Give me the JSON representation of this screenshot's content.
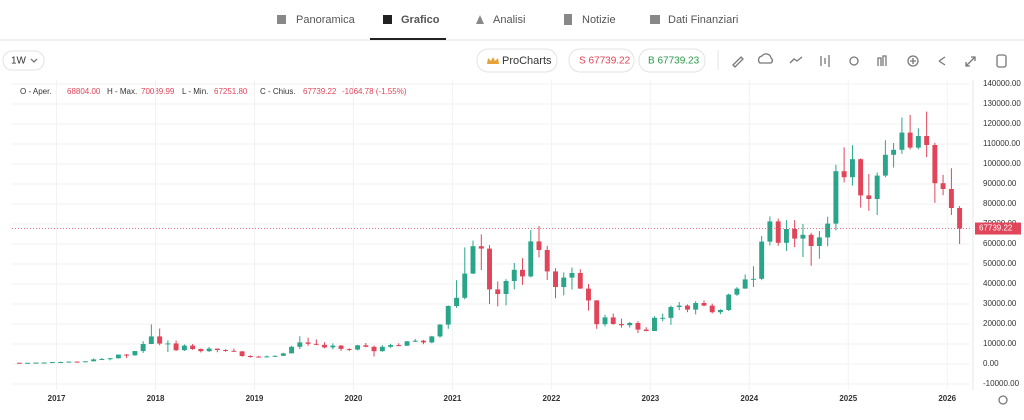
{
  "nav": {
    "tabs": [
      "Panoramica",
      "Grafico",
      "Analisi",
      "Notizie",
      "Dati Finanziari"
    ],
    "active_tab": 1
  },
  "toolbar": {
    "interval": "1W",
    "procharts": "ProCharts",
    "sell": "S 67739.22",
    "buy": "B 67739.23"
  },
  "ohlc_info": {
    "open_label": "O - Aper.",
    "open": "68804.00",
    "high_label": "H - Max.",
    "high": "70089.99",
    "low_label": "L - Min.",
    "low": "67251.80",
    "close_label": "C - Chius.",
    "close": "67739.22",
    "change": "-1064.78 (-1.55%)"
  },
  "chart_data": {
    "type": "candlestick",
    "up_color": "#2aa58a",
    "down_color": "#e0455a",
    "grid": true,
    "xlim": [
      2016.55,
      2026.23
    ],
    "xticks": [
      2017,
      2018,
      2019,
      2020,
      2021,
      2022,
      2023,
      2024,
      2025,
      2026
    ],
    "ylim": [
      -13000,
      142000
    ],
    "yticks": [
      {
        "value": -10000,
        "label": "-10000.00"
      },
      {
        "value": 0,
        "label": "0.00"
      },
      {
        "value": 10000,
        "label": "10000.00"
      },
      {
        "value": 20000,
        "label": "20000.00"
      },
      {
        "value": 30000,
        "label": "30000.00"
      },
      {
        "value": 40000,
        "label": "40000.00"
      },
      {
        "value": 50000,
        "label": "50000.00"
      },
      {
        "value": 60000,
        "label": "60000.00"
      },
      {
        "value": 70000,
        "label": "70000.00"
      },
      {
        "value": 80000,
        "label": "80000.00"
      },
      {
        "value": 90000,
        "label": "90000.00"
      },
      {
        "value": 100000,
        "label": "100000.00"
      },
      {
        "value": 110000,
        "label": "110000.00"
      },
      {
        "value": 120000,
        "label": "120000.00"
      },
      {
        "value": 130000,
        "label": "130000.00"
      },
      {
        "value": 140000,
        "label": "140000.00"
      }
    ],
    "last_price": 67739.22,
    "x": [
      2016.625,
      2016.708,
      2016.792,
      2016.875,
      2016.958,
      2017.042,
      2017.125,
      2017.208,
      2017.292,
      2017.375,
      2017.458,
      2017.542,
      2017.625,
      2017.708,
      2017.792,
      2017.875,
      2017.958,
      2018.042,
      2018.125,
      2018.208,
      2018.292,
      2018.375,
      2018.458,
      2018.542,
      2018.625,
      2018.708,
      2018.792,
      2018.875,
      2018.958,
      2019.042,
      2019.125,
      2019.208,
      2019.292,
      2019.375,
      2019.458,
      2019.542,
      2019.625,
      2019.708,
      2019.792,
      2019.875,
      2019.958,
      2020.042,
      2020.125,
      2020.208,
      2020.292,
      2020.375,
      2020.458,
      2020.542,
      2020.625,
      2020.708,
      2020.792,
      2020.875,
      2020.958,
      2021.042,
      2021.125,
      2021.208,
      2021.292,
      2021.375,
      2021.458,
      2021.542,
      2021.625,
      2021.708,
      2021.792,
      2021.875,
      2021.958,
      2022.042,
      2022.125,
      2022.208,
      2022.292,
      2022.375,
      2022.458,
      2022.542,
      2022.625,
      2022.708,
      2022.792,
      2022.875,
      2022.958,
      2023.042,
      2023.125,
      2023.208,
      2023.292,
      2023.375,
      2023.458,
      2023.542,
      2023.625,
      2023.708,
      2023.792,
      2023.875,
      2023.958,
      2024.042,
      2024.125,
      2024.208,
      2024.292,
      2024.375,
      2024.458,
      2024.542,
      2024.625,
      2024.708,
      2024.792,
      2024.875,
      2024.958,
      2025.042,
      2025.125,
      2025.208,
      2025.292,
      2025.375,
      2025.458,
      2025.542,
      2025.625,
      2025.708,
      2025.792,
      2025.875,
      2025.958,
      2026.042,
      2026.125
    ],
    "ohlc": [
      [
        625,
        630,
        530,
        575
      ],
      [
        575,
        630,
        590,
        610
      ],
      [
        610,
        740,
        600,
        700
      ],
      [
        700,
        760,
        690,
        740
      ],
      [
        740,
        980,
        730,
        960
      ],
      [
        960,
        1150,
        760,
        970
      ],
      [
        970,
        1210,
        930,
        1190
      ],
      [
        1190,
        1290,
        890,
        1080
      ],
      [
        1080,
        1350,
        1060,
        1350
      ],
      [
        1350,
        2760,
        1350,
        2300
      ],
      [
        2300,
        2980,
        2300,
        2480
      ],
      [
        2480,
        2920,
        1840,
        2880
      ],
      [
        2880,
        4770,
        2690,
        4700
      ],
      [
        4700,
        5000,
        2980,
        4340
      ],
      [
        4340,
        6470,
        4110,
        6470
      ],
      [
        6470,
        11400,
        5520,
        10000
      ],
      [
        10000,
        19800,
        10000,
        13800
      ],
      [
        13800,
        17700,
        9400,
        10200
      ],
      [
        10200,
        11800,
        6000,
        10300
      ],
      [
        10300,
        11700,
        6500,
        6900
      ],
      [
        6900,
        9800,
        6500,
        9200
      ],
      [
        9200,
        9990,
        7060,
        7500
      ],
      [
        7500,
        7800,
        5780,
        6400
      ],
      [
        6400,
        8480,
        6080,
        7700
      ],
      [
        7700,
        7760,
        5880,
        7000
      ],
      [
        7000,
        7410,
        6100,
        6600
      ],
      [
        6600,
        7680,
        6180,
        6300
      ],
      [
        6300,
        6550,
        3650,
        4000
      ],
      [
        4000,
        4310,
        3120,
        3700
      ],
      [
        3700,
        4100,
        3400,
        3450
      ],
      [
        3450,
        4200,
        3380,
        3800
      ],
      [
        3800,
        4300,
        3700,
        4100
      ],
      [
        4100,
        5640,
        4070,
        5300
      ],
      [
        5300,
        9070,
        5270,
        8600
      ],
      [
        8600,
        13900,
        7480,
        10800
      ],
      [
        10800,
        13150,
        9100,
        10100
      ],
      [
        10100,
        12300,
        9400,
        9600
      ],
      [
        9600,
        10900,
        7800,
        8300
      ],
      [
        8300,
        10350,
        7300,
        9200
      ],
      [
        9200,
        9500,
        6530,
        7550
      ],
      [
        7550,
        7750,
        6430,
        7200
      ],
      [
        7200,
        9580,
        6860,
        9350
      ],
      [
        9350,
        10500,
        8400,
        8600
      ],
      [
        8600,
        9200,
        3800,
        6400
      ],
      [
        6400,
        9460,
        6150,
        8600
      ],
      [
        8600,
        10070,
        8100,
        9450
      ],
      [
        9450,
        10380,
        8900,
        9140
      ],
      [
        9140,
        11450,
        9000,
        11350
      ],
      [
        11350,
        12470,
        10990,
        11650
      ],
      [
        11650,
        12050,
        9900,
        10780
      ],
      [
        10780,
        14100,
        10400,
        13800
      ],
      [
        13800,
        19900,
        13200,
        19700
      ],
      [
        19700,
        29300,
        17600,
        29000
      ],
      [
        29000,
        41900,
        28100,
        33100
      ],
      [
        33100,
        58300,
        32300,
        45200
      ],
      [
        45200,
        61700,
        45000,
        58900
      ],
      [
        58900,
        64800,
        47000,
        57700
      ],
      [
        57700,
        59500,
        30000,
        37300
      ],
      [
        37300,
        41300,
        28800,
        35000
      ],
      [
        35000,
        42400,
        29300,
        41500
      ],
      [
        41500,
        50500,
        37300,
        47100
      ],
      [
        47100,
        52900,
        39600,
        43800
      ],
      [
        43800,
        67000,
        43300,
        61300
      ],
      [
        61300,
        69000,
        53300,
        57000
      ],
      [
        57000,
        59100,
        42000,
        46300
      ],
      [
        46300,
        47900,
        32900,
        38500
      ],
      [
        38500,
        45800,
        34300,
        43200
      ],
      [
        43200,
        48200,
        37200,
        45500
      ],
      [
        45500,
        47400,
        37600,
        37700
      ],
      [
        37700,
        40000,
        26700,
        31800
      ],
      [
        31800,
        31900,
        17600,
        19900
      ],
      [
        19900,
        24600,
        18800,
        23300
      ],
      [
        23300,
        25200,
        19600,
        20000
      ],
      [
        20000,
        22700,
        18200,
        19400
      ],
      [
        19400,
        21000,
        18200,
        20500
      ],
      [
        20500,
        21400,
        15500,
        17200
      ],
      [
        17200,
        18400,
        16300,
        16500
      ],
      [
        16500,
        23900,
        16500,
        23100
      ],
      [
        23100,
        25200,
        21400,
        23100
      ],
      [
        23100,
        29200,
        19600,
        28500
      ],
      [
        28500,
        31000,
        26900,
        29200
      ],
      [
        29200,
        29800,
        25900,
        27200
      ],
      [
        27200,
        31400,
        24800,
        30500
      ],
      [
        30500,
        31800,
        28900,
        29200
      ],
      [
        29200,
        30200,
        25300,
        25900
      ],
      [
        25900,
        27400,
        24900,
        27000
      ],
      [
        27000,
        35200,
        26500,
        34700
      ],
      [
        34700,
        38400,
        34100,
        37700
      ],
      [
        37700,
        44700,
        37600,
        42300
      ],
      [
        42300,
        48900,
        38500,
        42600
      ],
      [
        42600,
        64000,
        41900,
        61200
      ],
      [
        61200,
        73800,
        59300,
        71300
      ],
      [
        71300,
        72700,
        59100,
        60600
      ],
      [
        60600,
        71900,
        56500,
        67500
      ],
      [
        67500,
        71900,
        58400,
        62700
      ],
      [
        62700,
        70000,
        53500,
        64600
      ],
      [
        64600,
        65600,
        49100,
        59000
      ],
      [
        59000,
        66500,
        52600,
        63300
      ],
      [
        63300,
        73600,
        58900,
        70200
      ],
      [
        70200,
        99600,
        66800,
        96400
      ],
      [
        96400,
        108300,
        90800,
        93400
      ],
      [
        93400,
        109400,
        89200,
        102400
      ],
      [
        102400,
        102800,
        78200,
        84300
      ],
      [
        84300,
        95000,
        76600,
        82500
      ],
      [
        82500,
        95800,
        74500,
        94200
      ],
      [
        94200,
        111900,
        93400,
        104600
      ],
      [
        104600,
        110500,
        98200,
        107100
      ],
      [
        107100,
        123200,
        105100,
        115700
      ],
      [
        115700,
        124500,
        107300,
        108200
      ],
      [
        108200,
        117900,
        107300,
        114000
      ],
      [
        114000,
        126200,
        103500,
        109500
      ],
      [
        109500,
        110600,
        80600,
        90400
      ],
      [
        90400,
        94600,
        84400,
        87500
      ],
      [
        87500,
        97900,
        74500,
        78000
      ],
      [
        78000,
        79000,
        60000,
        67739.22
      ]
    ]
  }
}
